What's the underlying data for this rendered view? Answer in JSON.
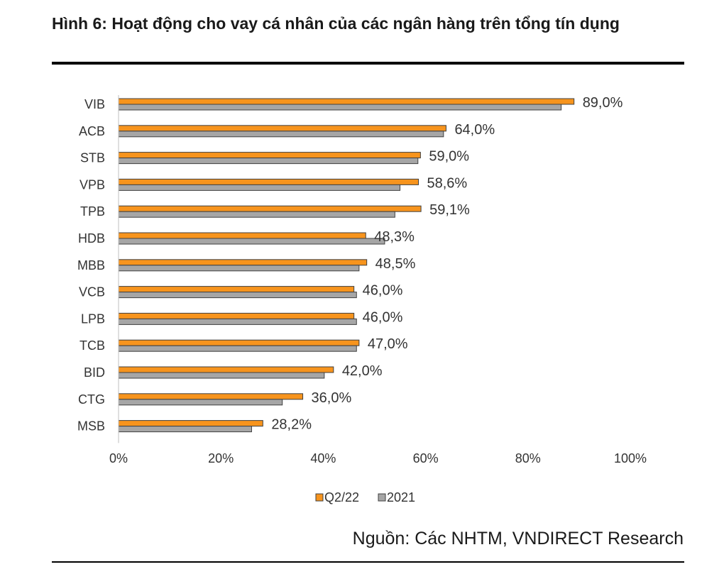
{
  "title": "Hình 6: Hoạt động cho vay cá nhân của các ngân hàng trên tổng tín dụng",
  "source": "Nguồn: Các NHTM, VNDIRECT Research",
  "chart_data": {
    "type": "bar",
    "orientation": "horizontal",
    "categories": [
      "VIB",
      "ACB",
      "STB",
      "VPB",
      "TPB",
      "HDB",
      "MBB",
      "VCB",
      "LPB",
      "TCB",
      "BID",
      "CTG",
      "MSB"
    ],
    "series": [
      {
        "name": "Q2/22",
        "color": "#f7941d",
        "values": [
          89.0,
          64.0,
          59.0,
          58.6,
          59.1,
          48.3,
          48.5,
          46.0,
          46.0,
          47.0,
          42.0,
          36.0,
          28.2
        ]
      },
      {
        "name": "2021",
        "color": "#a6a6a6",
        "values": [
          86.5,
          63.5,
          58.5,
          55.0,
          54.0,
          52.0,
          47.0,
          46.5,
          46.5,
          46.5,
          40.2,
          32.0,
          26.0
        ]
      }
    ],
    "data_labels": [
      "89,0%",
      "64,0%",
      "59,0%",
      "58,6%",
      "59,1%",
      "48,3%",
      "48,5%",
      "46,0%",
      "46,0%",
      "47,0%",
      "42,0%",
      "36,0%",
      "28,2%"
    ],
    "xlim": [
      0,
      100
    ],
    "xticks": [
      "0%",
      "20%",
      "40%",
      "60%",
      "80%",
      "100%"
    ],
    "grid": false,
    "legend_position": "bottom"
  }
}
